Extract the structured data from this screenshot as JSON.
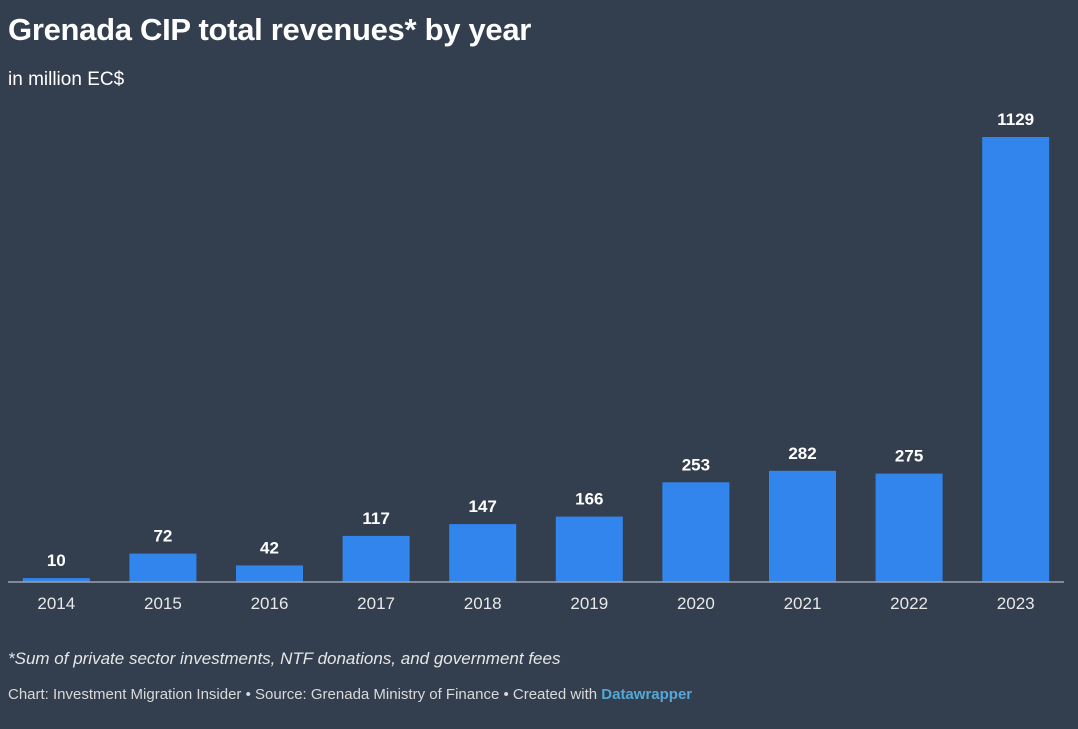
{
  "header": {
    "title": "Grenada CIP total revenues* by year",
    "subtitle": "in million EC$"
  },
  "footer": {
    "footnote": "*Sum of private sector investments, NTF donations, and government fees",
    "credits_prefix": "Chart: Investment Migration Insider • Source: Grenada Ministry of Finance • Created with",
    "credits_brand": "Datawrapper"
  },
  "colors": {
    "background": "#333f4f",
    "bar": "#3185ed",
    "baseline": "#9aa3ad",
    "brand_link": "#55a7d6"
  },
  "chart_data": {
    "type": "bar",
    "title": "Grenada CIP total revenues* by year",
    "subtitle": "in million EC$",
    "xlabel": "",
    "ylabel": "",
    "categories": [
      "2014",
      "2015",
      "2016",
      "2017",
      "2018",
      "2019",
      "2020",
      "2021",
      "2022",
      "2023"
    ],
    "values": [
      10,
      72,
      42,
      117,
      147,
      166,
      253,
      282,
      275,
      1129
    ],
    "ylim": [
      0,
      1129
    ],
    "grid": false,
    "legend": "none",
    "data_labels": true
  }
}
